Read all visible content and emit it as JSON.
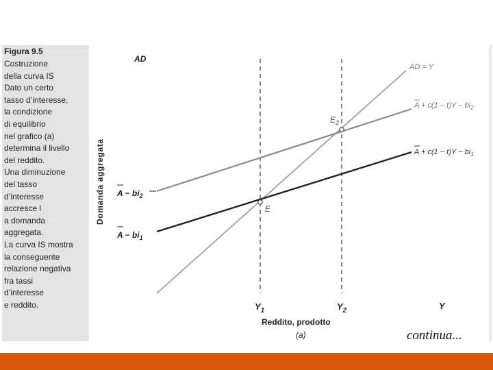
{
  "caption": {
    "title": "Figura 9.5",
    "lines": [
      "Costruzione",
      "della curva IS",
      "Dato un certo",
      "tasso d’interesse,",
      "la condizione",
      "di equilibrio",
      "nel grafico (a)",
      "determina il livello",
      "del reddito.",
      "Una diminuzione",
      "del tasso",
      "d’interesse",
      "accresce l",
      "a domanda",
      "aggregata.",
      "La curva IS mostra",
      "la conseguente",
      "relazione negativa",
      "fra tassi",
      "d’interesse",
      "e reddito."
    ]
  },
  "diagram": {
    "y_axis_title": "AD",
    "y_axis_side_label": "Domanda aggregata",
    "x_axis_title": "Y",
    "x_axis_label": "Reddito, prodotto",
    "panel_label": "(a)",
    "lines": {
      "ad_eq_y": "AD = Y",
      "upper": "A + c(1 − t)Y − bi",
      "upper_sub": "2",
      "lower": "A + c(1 − t)Y − bi",
      "lower_sub": "1"
    },
    "intercepts": {
      "upper": "A − bi",
      "upper_sub": "2",
      "lower": "A − bi",
      "lower_sub": "1"
    },
    "points": {
      "e2": "E",
      "e2_sub": "2",
      "e": "E"
    },
    "x_ticks": [
      {
        "label": "Y",
        "sub": "1"
      },
      {
        "label": "Y",
        "sub": "2"
      }
    ],
    "colors": {
      "upper_line": "#8a8a8a",
      "ad_line": "#a9a9a9",
      "lower_line": "#222222",
      "footer": "#d95a0a"
    }
  },
  "footer": {
    "continua": "continua..."
  }
}
